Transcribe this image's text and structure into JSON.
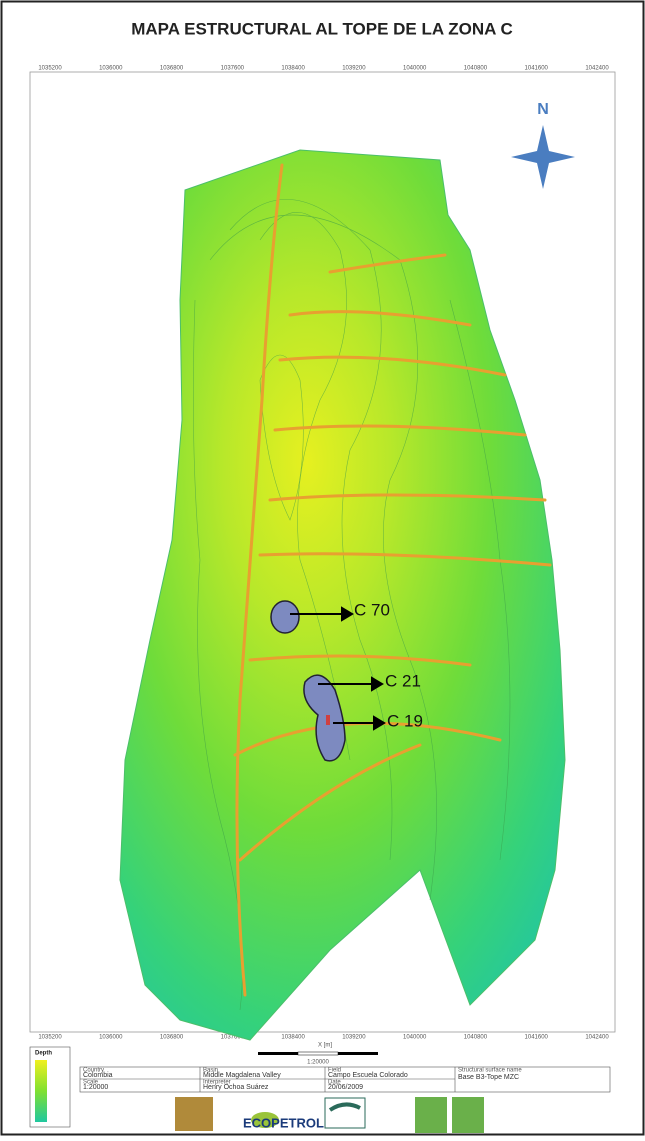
{
  "title": "MAPA ESTRUCTURAL AL TOPE DE LA ZONA C",
  "north": "N",
  "x_coords": [
    "1035200",
    "1036000",
    "1036800",
    "1037600",
    "1038400",
    "1039200",
    "1040000",
    "1040800",
    "1041600",
    "1042400"
  ],
  "wells": [
    "C 70",
    "C 21",
    "C 19"
  ],
  "axis_label": "X [m]",
  "scale_bar": "1:20000",
  "legend_title": "Depth",
  "info": {
    "country_label": "Country",
    "country": "Colombia",
    "basin_label": "Basin",
    "basin": "Middle Magdalena Valley",
    "field_label": "Field",
    "field": "Campo Escuela Colorado",
    "surface_label": "Structural surface name",
    "surface": "Base B3-Tope MZC",
    "scale_label": "Scale",
    "scale": "1:20000",
    "interpreter_label": "Interpreter",
    "interpreter": "Henry Ochoa Suárez",
    "date_label": "Date",
    "date": "20/06/2009"
  },
  "logos": [
    "ECOPETROL"
  ]
}
